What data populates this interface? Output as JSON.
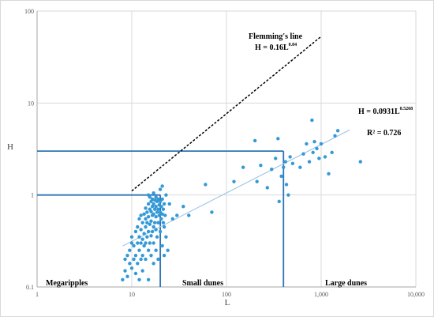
{
  "chart_data": {
    "type": "scatter",
    "title": "",
    "xlabel": "L",
    "ylabel": "H",
    "x_scale": "log",
    "y_scale": "log",
    "xlim": [
      1,
      10000
    ],
    "ylim": [
      0.1,
      100
    ],
    "x_ticks": [
      {
        "value": 1,
        "label": "1"
      },
      {
        "value": 10,
        "label": "10"
      },
      {
        "value": 100,
        "label": "100"
      },
      {
        "value": 1000,
        "label": "1,000"
      },
      {
        "value": 10000,
        "label": "10,000"
      }
    ],
    "y_ticks": [
      {
        "value": 0.1,
        "label": "0.1"
      },
      {
        "value": 1,
        "label": "1"
      },
      {
        "value": 10,
        "label": "10"
      },
      {
        "value": 100,
        "label": "100"
      }
    ],
    "grid": true,
    "colors": {
      "points": "#3399d6",
      "thresholds": "#2e75b6",
      "trendline": "#a6c8e6",
      "flemming": "#000000",
      "grid": "#d9d9d9"
    },
    "points": [
      [
        8,
        0.12
      ],
      [
        8.5,
        0.15
      ],
      [
        8.5,
        0.2
      ],
      [
        9,
        0.13
      ],
      [
        9,
        0.22
      ],
      [
        9.5,
        0.18
      ],
      [
        9.5,
        0.25
      ],
      [
        10,
        0.16
      ],
      [
        10,
        0.3
      ],
      [
        10,
        0.35
      ],
      [
        10.5,
        0.2
      ],
      [
        10.5,
        0.28
      ],
      [
        11,
        0.14
      ],
      [
        11,
        0.22
      ],
      [
        11,
        0.4
      ],
      [
        11.5,
        0.18
      ],
      [
        11.5,
        0.3
      ],
      [
        11.5,
        0.45
      ],
      [
        12,
        0.12
      ],
      [
        12,
        0.25
      ],
      [
        12,
        0.35
      ],
      [
        12,
        0.55
      ],
      [
        12.5,
        0.2
      ],
      [
        12.5,
        0.3
      ],
      [
        12.5,
        0.42
      ],
      [
        12.5,
        0.6
      ],
      [
        13,
        0.15
      ],
      [
        13,
        0.22
      ],
      [
        13,
        0.33
      ],
      [
        13,
        0.5
      ],
      [
        13.5,
        0.28
      ],
      [
        13.5,
        0.38
      ],
      [
        13.5,
        0.62
      ],
      [
        14,
        0.2
      ],
      [
        14,
        0.3
      ],
      [
        14,
        0.45
      ],
      [
        14,
        0.55
      ],
      [
        14,
        0.72
      ],
      [
        14.5,
        0.35
      ],
      [
        14.5,
        0.5
      ],
      [
        14.5,
        0.65
      ],
      [
        15,
        0.12
      ],
      [
        15,
        0.25
      ],
      [
        15,
        0.4
      ],
      [
        15,
        0.58
      ],
      [
        15,
        0.8
      ],
      [
        15,
        1.0
      ],
      [
        15.5,
        0.3
      ],
      [
        15.5,
        0.48
      ],
      [
        15.5,
        0.7
      ],
      [
        15.5,
        0.95
      ],
      [
        16,
        0.22
      ],
      [
        16,
        0.36
      ],
      [
        16,
        0.52
      ],
      [
        16,
        0.66
      ],
      [
        16,
        0.85
      ],
      [
        16.5,
        0.4
      ],
      [
        16.5,
        0.6
      ],
      [
        16.5,
        0.75
      ],
      [
        16.5,
        0.9
      ],
      [
        17,
        0.18
      ],
      [
        17,
        0.3
      ],
      [
        17,
        0.45
      ],
      [
        17,
        0.62
      ],
      [
        17,
        0.8
      ],
      [
        17,
        1.05
      ],
      [
        17.5,
        0.5
      ],
      [
        17.5,
        0.7
      ],
      [
        17.5,
        0.88
      ],
      [
        18,
        0.25
      ],
      [
        18,
        0.42
      ],
      [
        18,
        0.58
      ],
      [
        18,
        0.75
      ],
      [
        18,
        0.95
      ],
      [
        18.5,
        0.35
      ],
      [
        18.5,
        0.65
      ],
      [
        18.5,
        0.85
      ],
      [
        19,
        0.2
      ],
      [
        19,
        0.5
      ],
      [
        19,
        0.7
      ],
      [
        19,
        0.9
      ],
      [
        19.5,
        0.6
      ],
      [
        19.5,
        0.78
      ],
      [
        20,
        0.4
      ],
      [
        20,
        0.65
      ],
      [
        20,
        0.85
      ],
      [
        20,
        1.15
      ],
      [
        20.5,
        0.55
      ],
      [
        20.5,
        0.75
      ],
      [
        21,
        0.28
      ],
      [
        21,
        0.62
      ],
      [
        21,
        0.9
      ],
      [
        21,
        1.25
      ],
      [
        21.5,
        0.5
      ],
      [
        21.5,
        0.7
      ],
      [
        22,
        0.22
      ],
      [
        22,
        0.45
      ],
      [
        22,
        0.8
      ],
      [
        22.5,
        0.6
      ],
      [
        23,
        0.35
      ],
      [
        23,
        1.0
      ],
      [
        24,
        0.25
      ],
      [
        25,
        0.8
      ],
      [
        27,
        0.55
      ],
      [
        30,
        0.6
      ],
      [
        35,
        0.75
      ],
      [
        40,
        0.6
      ],
      [
        60,
        1.3
      ],
      [
        70,
        0.65
      ],
      [
        120,
        1.4
      ],
      [
        150,
        2.0
      ],
      [
        200,
        3.9
      ],
      [
        210,
        1.4
      ],
      [
        230,
        2.1
      ],
      [
        270,
        1.2
      ],
      [
        300,
        1.9
      ],
      [
        330,
        2.5
      ],
      [
        350,
        4.1
      ],
      [
        360,
        0.85
      ],
      [
        380,
        1.6
      ],
      [
        400,
        2.0
      ],
      [
        420,
        2.3
      ],
      [
        430,
        1.3
      ],
      [
        450,
        1.0
      ],
      [
        470,
        2.6
      ],
      [
        500,
        2.2
      ],
      [
        600,
        2.0
      ],
      [
        650,
        2.8
      ],
      [
        700,
        3.6
      ],
      [
        750,
        2.3
      ],
      [
        800,
        6.5
      ],
      [
        820,
        2.9
      ],
      [
        850,
        3.8
      ],
      [
        900,
        3.2
      ],
      [
        950,
        2.5
      ],
      [
        1000,
        3.6
      ],
      [
        1100,
        2.6
      ],
      [
        1200,
        1.7
      ],
      [
        1300,
        2.9
      ],
      [
        1400,
        4.4
      ],
      [
        1500,
        5.0
      ],
      [
        2600,
        2.3
      ]
    ],
    "thresholds": [
      {
        "x": 20,
        "y": 1
      },
      {
        "x": 400,
        "y": 3
      }
    ],
    "flemming_line": {
      "label": "Flemming's line",
      "equation_base": "H = 0.16L",
      "equation_exp": "0.84",
      "coefficient": 0.16,
      "exponent": 0.84,
      "x_range": [
        10,
        1000
      ]
    },
    "trendline": {
      "equation_base": "H = 0.0931L",
      "equation_exp": "0.5268",
      "r2": "R² = 0.726",
      "coefficient": 0.0931,
      "exponent": 0.5268,
      "x_range": [
        8,
        2000
      ]
    },
    "regions": [
      {
        "label": "Megaripples",
        "x": 1.3
      },
      {
        "label": "Small dunes",
        "x": 23
      },
      {
        "label": "Large dunes",
        "x": 900
      }
    ]
  }
}
